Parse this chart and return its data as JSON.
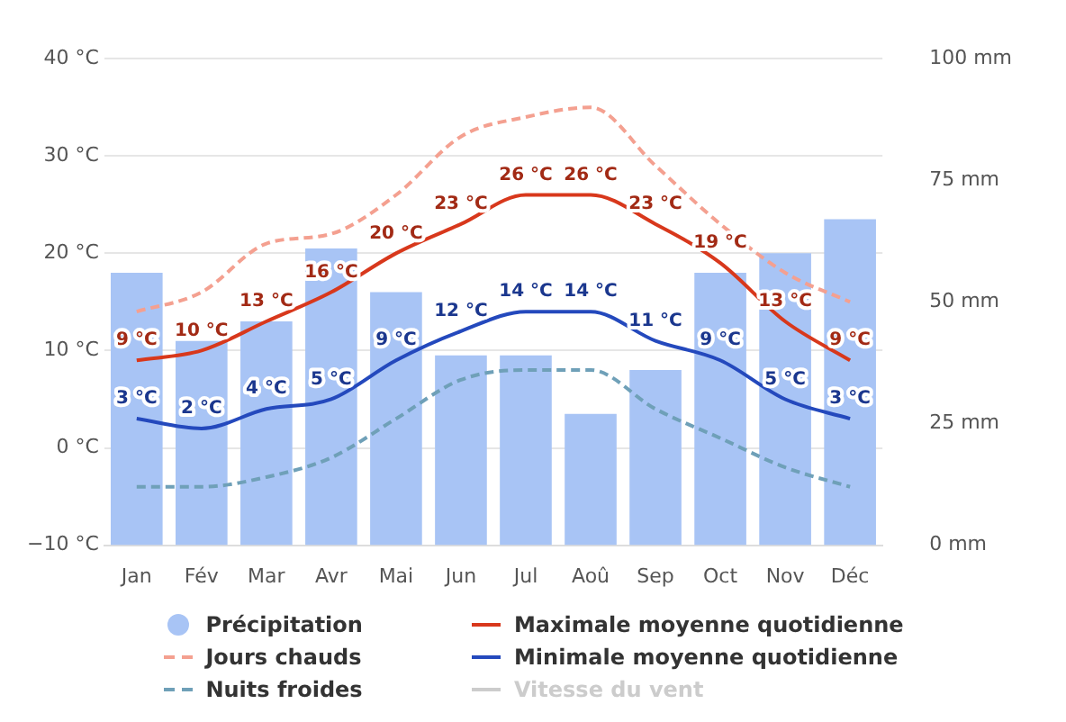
{
  "chart_data": {
    "type": "bar",
    "categories": [
      "Jan",
      "Fév",
      "Mar",
      "Avr",
      "Mai",
      "Jun",
      "Jul",
      "Aoû",
      "Sep",
      "Oct",
      "Nov",
      "Déc"
    ],
    "series": [
      {
        "name": "Précipitation",
        "axis": "y2",
        "color": "#a8c4f5",
        "values": [
          56,
          42,
          46,
          61,
          52,
          39,
          39,
          27,
          36,
          56,
          60,
          67
        ]
      },
      {
        "name": "Jours chauds",
        "type": "line",
        "color": "#f4a090",
        "line_style": "dashed",
        "values": [
          14,
          16,
          21,
          22,
          26,
          32,
          34,
          35,
          29,
          23,
          18,
          15
        ]
      },
      {
        "name": "Nuits froides",
        "type": "line",
        "color": "#6fa0b8",
        "line_style": "dashed",
        "values": [
          -4,
          -4,
          -3,
          -1,
          3,
          7,
          8,
          8,
          4,
          1,
          -2,
          -4
        ]
      },
      {
        "name": "Maximale moyenne quotidienne",
        "type": "line",
        "color": "#d8381c",
        "line_style": "solid",
        "values": [
          9,
          10,
          13,
          16,
          20,
          23,
          26,
          26,
          23,
          19,
          13,
          9
        ],
        "value_labels": [
          "9 °C",
          "10 °C",
          "13 °C",
          "16 °C",
          "20 °C",
          "23 °C",
          "26 °C",
          "26 °C",
          "23 °C",
          "19 °C",
          "13 °C",
          "9 °C"
        ]
      },
      {
        "name": "Minimale moyenne quotidienne",
        "type": "line",
        "color": "#2449bd",
        "line_style": "solid",
        "values": [
          3,
          2,
          4,
          5,
          9,
          12,
          14,
          14,
          11,
          9,
          5,
          3
        ],
        "value_labels": [
          "3 °C",
          "2 °C",
          "4 °C",
          "5 °C",
          "9 °C",
          "12 °C",
          "14 °C",
          "14 °C",
          "11 °C",
          "9 °C",
          "5 °C",
          "3 °C"
        ]
      },
      {
        "name": "Vitesse du vent",
        "type": "line",
        "color": "#cccccc",
        "line_style": "solid",
        "values": [
          null,
          null,
          null,
          null,
          null,
          null,
          null,
          null,
          null,
          null,
          null,
          null
        ]
      }
    ],
    "ylim": [
      -10,
      40
    ],
    "yticks": [
      {
        "value": -10,
        "label": "−10 °C"
      },
      {
        "value": 0,
        "label": "0 °C"
      },
      {
        "value": 10,
        "label": "10 °C"
      },
      {
        "value": 20,
        "label": "20 °C"
      },
      {
        "value": 30,
        "label": "30 °C"
      },
      {
        "value": 40,
        "label": "40 °C"
      }
    ],
    "y2lim": [
      0,
      100
    ],
    "y2ticks": [
      {
        "value": 0,
        "label": "0 mm"
      },
      {
        "value": 25,
        "label": "25 mm"
      },
      {
        "value": 50,
        "label": "50 mm"
      },
      {
        "value": 75,
        "label": "75 mm"
      },
      {
        "value": 100,
        "label": "100 mm"
      }
    ],
    "grid": "y",
    "legend": "bottom"
  }
}
